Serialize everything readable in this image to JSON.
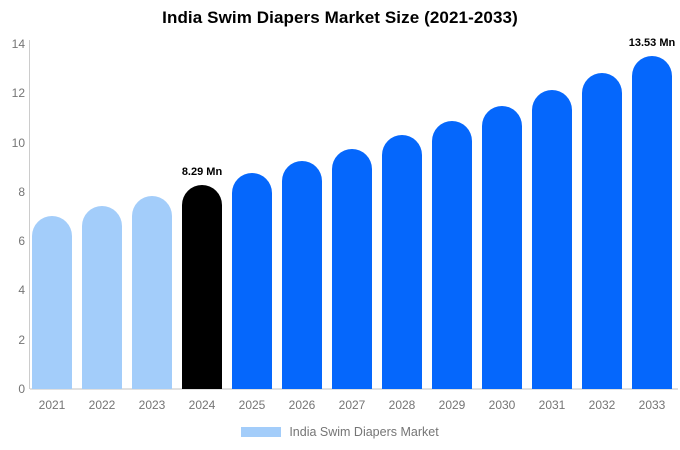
{
  "chart": {
    "title": "India Swim Diapers Market Size (2021-2033)",
    "legend": {
      "label": "India Swim Diapers Market",
      "swatch_color": "#a3cdfa"
    }
  },
  "chart_data": {
    "type": "bar",
    "title": "India Swim Diapers Market Size (2021-2033)",
    "xlabel": "",
    "ylabel": "",
    "unit": "Mn",
    "categories": [
      "2021",
      "2022",
      "2023",
      "2024",
      "2025",
      "2026",
      "2027",
      "2028",
      "2029",
      "2030",
      "2031",
      "2032",
      "2033"
    ],
    "values": [
      7.04,
      7.43,
      7.85,
      8.29,
      8.75,
      9.24,
      9.76,
      10.31,
      10.88,
      11.49,
      12.14,
      12.81,
      13.53
    ],
    "ylim": [
      0,
      14
    ],
    "yticks": [
      0,
      2,
      4,
      6,
      8,
      10,
      12,
      14
    ],
    "grid": false,
    "legend_position": "bottom",
    "legend_entries": [
      "India Swim Diapers Market"
    ],
    "bar_styles": [
      "historical",
      "historical",
      "historical",
      "base_year",
      "forecast",
      "forecast",
      "forecast",
      "forecast",
      "forecast",
      "forecast",
      "forecast",
      "forecast",
      "forecast"
    ],
    "colors": {
      "historical": "#a3cdfa",
      "base_year": "#000000",
      "forecast": "#0567fc",
      "axis_line": "#cccccc",
      "baseline": "#e0e0e0",
      "tick_label": "#757575"
    },
    "annotations": [
      {
        "category": "2024",
        "text": "8.29 Mn"
      },
      {
        "category": "2033",
        "text": "13.53 Mn"
      }
    ]
  }
}
